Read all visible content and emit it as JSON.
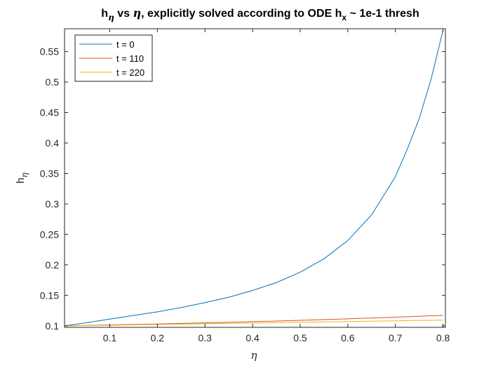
{
  "chart_data": {
    "type": "line",
    "title": {
      "h": "h",
      "h_sub": "η",
      "vs": " vs ",
      "eta": "η",
      "rest": ", explicitly solved according to ODE h",
      "x_sub": "x",
      "end": " ~ 1e-1 thresh"
    },
    "xlabel": "η",
    "ylabel": {
      "h": "h",
      "sub": "η"
    },
    "xlim": [
      0.005,
      0.805
    ],
    "ylim": [
      0.0975,
      0.5875
    ],
    "xticks": [
      0.1,
      0.2,
      0.3,
      0.4,
      0.5,
      0.6,
      0.7,
      0.8
    ],
    "xtick_labels": [
      "0.1",
      "0.2",
      "0.3",
      "0.4",
      "0.5",
      "0.6",
      "0.7",
      "0.8"
    ],
    "yticks": [
      0.1,
      0.15,
      0.2,
      0.25,
      0.3,
      0.35,
      0.4,
      0.45,
      0.5,
      0.55
    ],
    "ytick_labels": [
      "0.1",
      "0.15",
      "0.2",
      "0.25",
      "0.3",
      "0.35",
      "0.4",
      "0.45",
      "0.5",
      "0.55"
    ],
    "grid": false,
    "legend_position": "top-left",
    "series": [
      {
        "name": "t = 0",
        "color": "#0072BD",
        "x": [
          0.005,
          0.05,
          0.1,
          0.15,
          0.2,
          0.25,
          0.3,
          0.35,
          0.4,
          0.45,
          0.5,
          0.55,
          0.6,
          0.65,
          0.7,
          0.725,
          0.75,
          0.775,
          0.8
        ],
        "y": [
          0.1,
          0.105,
          0.111,
          0.117,
          0.123,
          0.13,
          0.138,
          0.147,
          0.158,
          0.171,
          0.188,
          0.21,
          0.24,
          0.282,
          0.345,
          0.39,
          0.44,
          0.505,
          0.585
        ]
      },
      {
        "name": "t = 110",
        "color": "#D95319",
        "x": [
          0.005,
          0.1,
          0.2,
          0.3,
          0.4,
          0.5,
          0.6,
          0.7,
          0.8
        ],
        "y": [
          0.1,
          0.1015,
          0.103,
          0.1048,
          0.1068,
          0.109,
          0.1115,
          0.1142,
          0.1172
        ]
      },
      {
        "name": "t = 220",
        "color": "#EDB120",
        "x": [
          0.005,
          0.1,
          0.2,
          0.3,
          0.4,
          0.5,
          0.6,
          0.7,
          0.8
        ],
        "y": [
          0.1,
          0.101,
          0.1022,
          0.1034,
          0.1046,
          0.1058,
          0.107,
          0.1082,
          0.1095
        ]
      }
    ]
  }
}
